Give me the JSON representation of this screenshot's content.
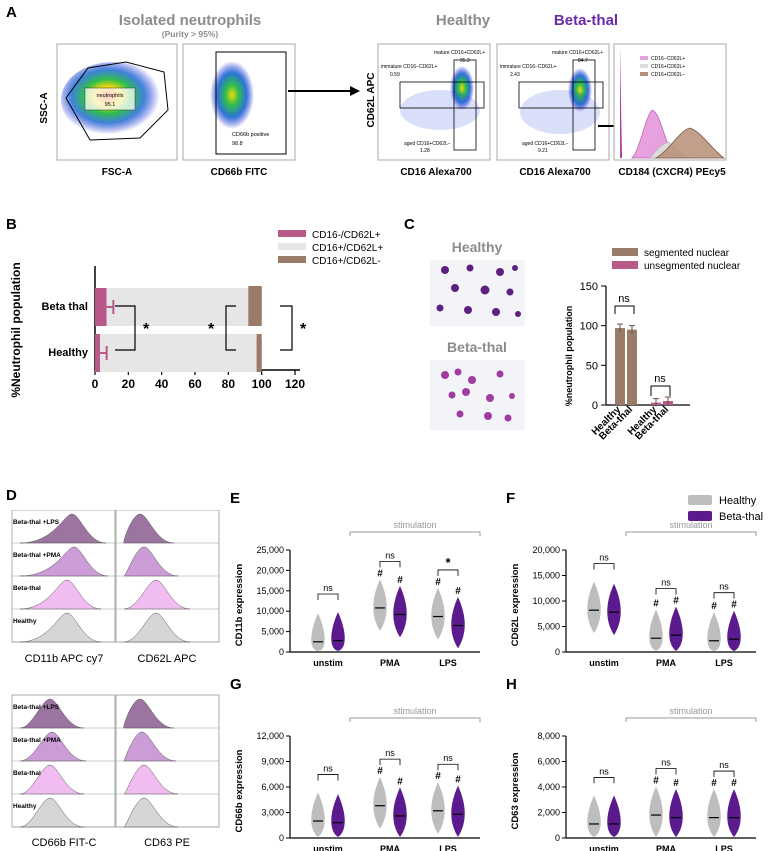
{
  "panels": {
    "A": "A",
    "B": "B",
    "C": "C",
    "D": "D",
    "E": "E",
    "F": "F",
    "G": "G",
    "H": "H"
  },
  "colors": {
    "healthy": "#bdbdbd",
    "betathal": "#5b1a8e",
    "pink": "#b8598a",
    "light": "#e6e6e6",
    "brown": "#9a7b6a",
    "grey_text": "#8c8c8c",
    "purple_title": "#6a2aa8"
  },
  "panelA": {
    "title": "Isolated neutrophils",
    "purity": "(Purity > 95%)",
    "healthy_title": "Healthy",
    "betathal_title": "Beta-thal",
    "plot1": {
      "ylabel": "SSC-A",
      "xlabel": "FSC-A",
      "gate_label": "neutrophils",
      "gate_value": "95.1"
    },
    "plot2": {
      "xlabel": "CD66b FITC",
      "gate_label": "CD66b positive",
      "gate_value": "98.8"
    },
    "ylabel_cd62l": "CD62L APC",
    "plot3": {
      "xlabel": "CD16 Alexa700",
      "mature": "mature CD16+CD62L+",
      "mature_val": "95.2",
      "immature": "immature CD16−CD62L+",
      "immature_val": "0.59",
      "aged": "aged CD16+CD62L−",
      "aged_val": "1.28"
    },
    "plot4": {
      "xlabel": "CD16 Alexa700",
      "mature": "mature CD16+CD62L+",
      "mature_val": "84.7",
      "immature": "immature CD16−CD62L+",
      "immature_val": "2.43",
      "aged": "aged CD16+CD62L−",
      "aged_val": "9.21"
    },
    "plot5": {
      "xlabel": "CD184 (CXCR4) PEcy5",
      "legend": [
        "CD16−CD62L+",
        "CD16+CD62L+",
        "CD16+CD62L−"
      ]
    }
  },
  "panelB": {
    "ylabel": "%Neutrophil population",
    "legend": [
      "CD16-/CD62L+",
      "CD16+/CD62L+",
      "CD16+/CD62L-"
    ],
    "star": "*"
  },
  "panelC": {
    "healthy": "Healthy",
    "betathal": "Beta-thal",
    "legend": [
      "segmented nuclear",
      "unsegmented nuclear"
    ],
    "ylabel": "%neutrophil population",
    "ns": "ns"
  },
  "panelD": {
    "rows": [
      "Beta-thal +LPS",
      "Beta-thal +PMA",
      "Beta-thal",
      "Healthy"
    ],
    "labels_top": [
      "CD11b APC cy7",
      "CD62L APC"
    ],
    "labels_bottom": [
      "CD66b FIT-C",
      "CD63 PE"
    ]
  },
  "violin_common": {
    "stimulation": "stimulation",
    "legend": [
      "Healthy",
      "Beta-thal"
    ],
    "hash": "#",
    "ns": "ns",
    "star": "*"
  },
  "chart_data": [
    {
      "type": "bar",
      "id": "B",
      "orientation": "horizontal",
      "categories": [
        "Beta thal",
        "Healthy"
      ],
      "series": [
        {
          "name": "CD16-/CD62L+",
          "values": [
            7,
            3
          ]
        },
        {
          "name": "CD16+/CD62L+",
          "values": [
            86,
            94
          ]
        },
        {
          "name": "CD16+/CD62L-",
          "values": [
            7,
            3
          ]
        }
      ],
      "xticks": [
        "0",
        "20",
        "40",
        "60",
        "80",
        "100",
        "120"
      ],
      "xlim": [
        0,
        120
      ]
    },
    {
      "type": "bar",
      "id": "C",
      "categories": [
        "Healthy",
        "Beta-thal",
        "Healthy",
        "Beta-thal"
      ],
      "series": [
        {
          "name": "segmented nuclear",
          "values": [
            97,
            95,
            null,
            null
          ]
        },
        {
          "name": "unsegmented nuclear",
          "values": [
            null,
            null,
            3,
            5
          ]
        }
      ],
      "yticks": [
        "0",
        "50",
        "100",
        "150"
      ],
      "ylim": [
        0,
        150
      ]
    },
    {
      "type": "violin",
      "id": "E",
      "ylabel": "CD11b expression",
      "categories": [
        "unstim",
        "PMA",
        "LPS"
      ],
      "healthy_medians": [
        2500,
        10800,
        8700
      ],
      "betathal_medians": [
        2800,
        9200,
        6500
      ],
      "yticks": [
        "0",
        "5,000",
        "10,000",
        "15,000",
        "20,000",
        "25,000"
      ],
      "ylim": [
        0,
        25000
      ]
    },
    {
      "type": "violin",
      "id": "F",
      "ylabel": "CD62L expression",
      "categories": [
        "unstim",
        "PMA",
        "LPS"
      ],
      "healthy_medians": [
        8200,
        2700,
        2200
      ],
      "betathal_medians": [
        7800,
        3300,
        2500
      ],
      "yticks": [
        "0",
        "5,000",
        "10,000",
        "15,000",
        "20,000"
      ],
      "ylim": [
        0,
        20000
      ]
    },
    {
      "type": "violin",
      "id": "G",
      "ylabel": "CD66b expression",
      "categories": [
        "unstim",
        "PMA",
        "LPS"
      ],
      "healthy_medians": [
        2000,
        3800,
        3200
      ],
      "betathal_medians": [
        1800,
        2600,
        2800
      ],
      "yticks": [
        "0",
        "3,000",
        "6,000",
        "9,000",
        "12,000"
      ],
      "ylim": [
        0,
        12000
      ]
    },
    {
      "type": "violin",
      "id": "H",
      "ylabel": "CD63 expression",
      "categories": [
        "unstim",
        "PMA",
        "LPS"
      ],
      "healthy_medians": [
        1100,
        1800,
        1600
      ],
      "betathal_medians": [
        1100,
        1600,
        1600
      ],
      "yticks": [
        "0",
        "2,000",
        "4,000",
        "6,000",
        "8,000"
      ],
      "ylim": [
        0,
        8000
      ]
    }
  ]
}
